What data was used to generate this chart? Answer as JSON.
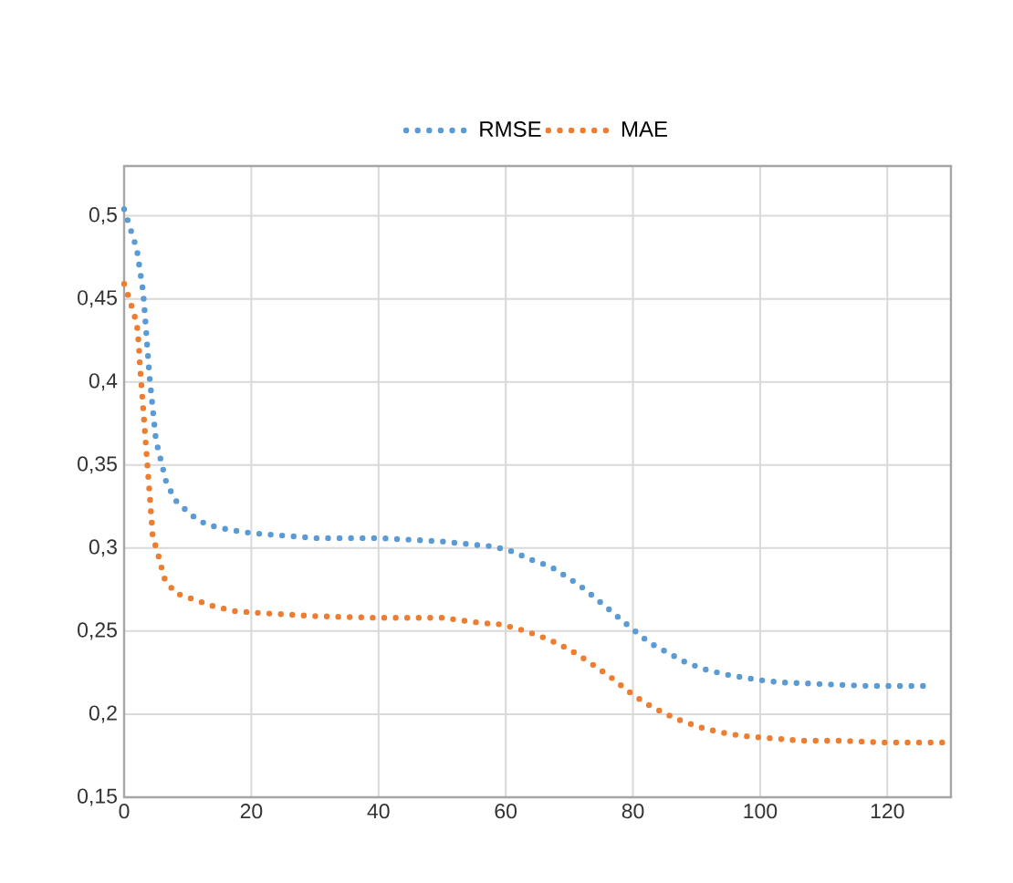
{
  "chart_data": {
    "type": "line",
    "line_style": "dotted",
    "grid": true,
    "legend": "top",
    "xlim": [
      0,
      130
    ],
    "xticks": [
      0,
      20,
      40,
      60,
      80,
      100,
      120
    ],
    "ylim": [
      0.15,
      0.53
    ],
    "yticks": [
      {
        "value": 0.15,
        "label": "0,15"
      },
      {
        "value": 0.2,
        "label": "0,2"
      },
      {
        "value": 0.25,
        "label": "0,25"
      },
      {
        "value": 0.3,
        "label": "0,3"
      },
      {
        "value": 0.35,
        "label": "0,35"
      },
      {
        "value": 0.4,
        "label": "0,4"
      },
      {
        "value": 0.45,
        "label": "0,45"
      },
      {
        "value": 0.5,
        "label": "0,5"
      }
    ],
    "series": [
      {
        "name": "RMSE",
        "color": "#5b9bd5",
        "x": [
          0,
          1,
          2,
          3,
          4,
          5,
          6.6,
          8,
          10.5,
          13,
          16.5,
          20,
          30,
          40,
          50,
          55,
          58,
          61,
          64,
          67,
          69.9,
          72.5,
          75,
          77.5,
          80,
          82.6,
          85.5,
          88.4,
          91.3,
          94.4,
          97.6,
          100.9,
          104,
          110.4,
          117,
          123.3,
          126.5
        ],
        "values": [
          0.504,
          0.492,
          0.48,
          0.454,
          0.403,
          0.365,
          0.34,
          0.329,
          0.32,
          0.314,
          0.311,
          0.309,
          0.306,
          0.306,
          0.304,
          0.302,
          0.301,
          0.298,
          0.293,
          0.289,
          0.282,
          0.275,
          0.267,
          0.259,
          0.251,
          0.243,
          0.237,
          0.231,
          0.227,
          0.224,
          0.222,
          0.22,
          0.219,
          0.218,
          0.217,
          0.217,
          0.217
        ]
      },
      {
        "name": "MAE",
        "color": "#ed7d31",
        "x": [
          0,
          1,
          2,
          2.3,
          2.5,
          3,
          3.5,
          4,
          4.5,
          5.5,
          6.3,
          8,
          11,
          14,
          17.5,
          21,
          30,
          40,
          50,
          56,
          59.3,
          62.3,
          65.4,
          68.5,
          71.3,
          74,
          76.6,
          79.2,
          81.8,
          84.7,
          87.6,
          90.7,
          93.8,
          97,
          100,
          106.6,
          113,
          119.3,
          129
        ],
        "values": [
          0.459,
          0.448,
          0.435,
          0.423,
          0.409,
          0.384,
          0.358,
          0.333,
          0.307,
          0.294,
          0.282,
          0.273,
          0.269,
          0.265,
          0.262,
          0.261,
          0.259,
          0.258,
          0.258,
          0.255,
          0.254,
          0.251,
          0.247,
          0.242,
          0.236,
          0.229,
          0.222,
          0.214,
          0.207,
          0.201,
          0.196,
          0.192,
          0.189,
          0.187,
          0.186,
          0.184,
          0.184,
          0.183,
          0.183
        ]
      }
    ]
  }
}
